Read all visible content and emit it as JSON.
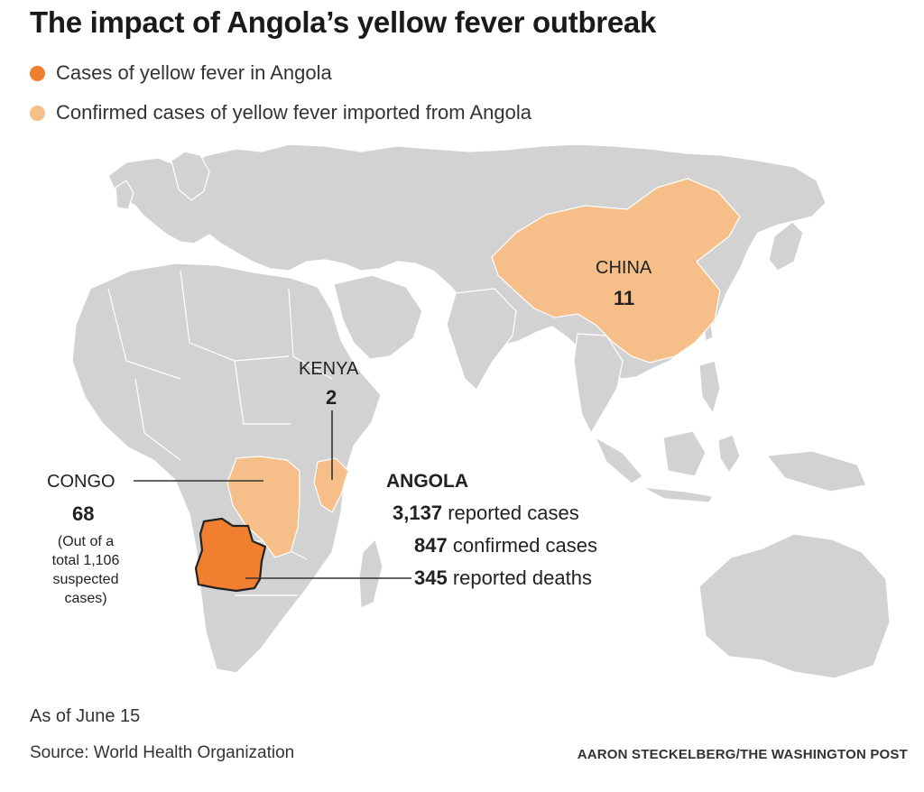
{
  "title": "The impact of Angola’s yellow fever outbreak",
  "legend": [
    {
      "label": "Cases of yellow fever in Angola",
      "color": "#f08030"
    },
    {
      "label": "Confirmed cases of yellow fever imported from Angola",
      "color": "#f6bf8a"
    }
  ],
  "colors": {
    "land": "#d2d2d2",
    "border": "#ffffff",
    "angola": "#f08030",
    "imported": "#f6bf8a",
    "leader": "#333333"
  },
  "regions": {
    "china": {
      "name": "CHINA",
      "count": "11"
    },
    "kenya": {
      "name": "KENYA",
      "count": "2"
    },
    "congo": {
      "name": "CONGO",
      "count": "68",
      "note_lines": [
        "(Out of a",
        "total 1,106",
        "suspected",
        "cases)"
      ]
    },
    "angola": {
      "name": "ANGOLA",
      "stats": [
        {
          "value": "3,137",
          "label": "reported cases"
        },
        {
          "value": "847",
          "label": "confirmed cases"
        },
        {
          "value": "345",
          "label": "reported deaths"
        }
      ]
    }
  },
  "footer": {
    "as_of": "As of June 15",
    "source": "Source: World Health Organization",
    "credit": "AARON STECKELBERG/THE WASHINGTON POST"
  }
}
